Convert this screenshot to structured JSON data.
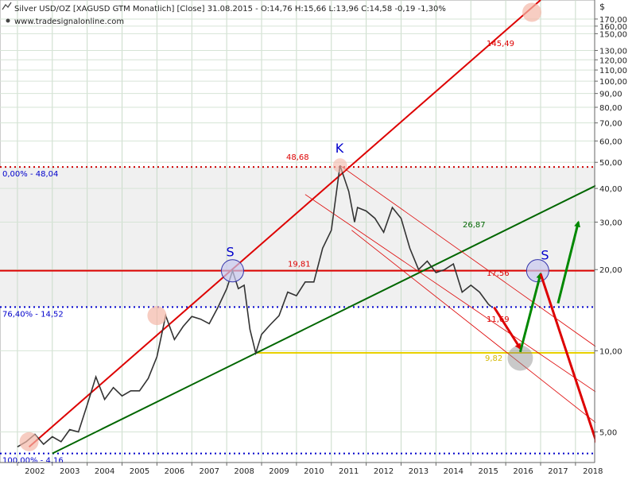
{
  "header": {
    "title": "Silver USD/OZ [XAGUSD GTM  Monatlich] [Close] 31.08.2015 - O:14,76 H:15,66 L:13,96 C:14,58 -0,19 -1,30%",
    "url": "www.tradesignalonline.com"
  },
  "chart_data": {
    "type": "line",
    "y_scale": "log",
    "y_axis_label": "$",
    "y_ticks": [
      "5,00",
      "10,00",
      "20,00",
      "30,00",
      "40,00",
      "50,00",
      "60,00",
      "70,00",
      "80,00",
      "90,00",
      "100,00",
      "110,00",
      "120,00",
      "130,00",
      "150,00",
      "160,00",
      "170,00"
    ],
    "x_ticks": [
      "2002",
      "2003",
      "2004",
      "2005",
      "2006",
      "2007",
      "2008",
      "2009",
      "2010",
      "2011",
      "2012",
      "2013",
      "2014",
      "2015",
      "2016",
      "2017",
      "2018"
    ],
    "grid": true,
    "series": [
      {
        "values": [
          [
            "2002-01",
            4.4
          ],
          [
            "2002-04",
            4.6
          ],
          [
            "2002-07",
            4.9
          ],
          [
            "2002-10",
            4.5
          ],
          [
            "2003-01",
            4.8
          ],
          [
            "2003-04",
            4.6
          ],
          [
            "2003-07",
            5.1
          ],
          [
            "2003-10",
            5.0
          ],
          [
            "2004-01",
            6.3
          ],
          [
            "2004-04",
            8.0
          ],
          [
            "2004-07",
            6.6
          ],
          [
            "2004-10",
            7.3
          ],
          [
            "2005-01",
            6.8
          ],
          [
            "2005-04",
            7.1
          ],
          [
            "2005-07",
            7.1
          ],
          [
            "2005-10",
            7.9
          ],
          [
            "2006-01",
            9.5
          ],
          [
            "2006-04",
            13.5
          ],
          [
            "2006-07",
            11.0
          ],
          [
            "2006-10",
            12.3
          ],
          [
            "2007-01",
            13.4
          ],
          [
            "2007-04",
            13.1
          ],
          [
            "2007-07",
            12.6
          ],
          [
            "2007-10",
            14.5
          ],
          [
            "2008-01",
            17.0
          ],
          [
            "2008-03",
            19.8
          ],
          [
            "2008-05",
            17.0
          ],
          [
            "2008-07",
            17.5
          ],
          [
            "2008-09",
            12.0
          ],
          [
            "2008-11",
            9.8
          ],
          [
            "2009-01",
            11.5
          ],
          [
            "2009-04",
            12.5
          ],
          [
            "2009-07",
            13.5
          ],
          [
            "2009-10",
            16.5
          ],
          [
            "2010-01",
            16.0
          ],
          [
            "2010-04",
            18.0
          ],
          [
            "2010-07",
            18.0
          ],
          [
            "2010-10",
            24.0
          ],
          [
            "2011-01",
            28.0
          ],
          [
            "2011-04",
            48.68
          ],
          [
            "2011-07",
            39.0
          ],
          [
            "2011-09",
            30.0
          ],
          [
            "2011-10",
            34.0
          ],
          [
            "2012-01",
            33.0
          ],
          [
            "2012-04",
            31.0
          ],
          [
            "2012-07",
            27.5
          ],
          [
            "2012-10",
            34.0
          ],
          [
            "2013-01",
            31.0
          ],
          [
            "2013-04",
            24.0
          ],
          [
            "2013-07",
            20.0
          ],
          [
            "2013-10",
            21.5
          ],
          [
            "2014-01",
            19.5
          ],
          [
            "2014-04",
            20.0
          ],
          [
            "2014-07",
            21.0
          ],
          [
            "2014-10",
            16.5
          ],
          [
            "2015-01",
            17.5
          ],
          [
            "2015-04",
            16.5
          ],
          [
            "2015-07",
            14.9
          ],
          [
            "2015-08",
            14.58
          ]
        ]
      }
    ],
    "horizontal_lines": [
      {
        "label": "0,00% - 48,04",
        "value": 48.04,
        "color": "#cc0000",
        "style": "dotted"
      },
      {
        "label": "19,81",
        "value": 19.81,
        "color": "#dd0000",
        "style": "solid"
      },
      {
        "label": "76,40% - 14,52",
        "value": 14.52,
        "color": "#0000cc",
        "style": "dotted"
      },
      {
        "label": "9,82",
        "value": 9.82,
        "color": "#e8d000",
        "style": "solid"
      },
      {
        "label": "100,00% - 4,16",
        "value": 4.16,
        "color": "#0000cc",
        "style": "dotted"
      }
    ],
    "trend_lines": [
      {
        "label": "145,49",
        "color": "#dd0000",
        "from": [
          "2002-05",
          4.4
        ],
        "to": [
          "2017-01",
          200
        ]
      },
      {
        "label": "26,87",
        "color": "#006600",
        "from": [
          "2003-01",
          4.16
        ],
        "to": [
          "2018-10",
          42
        ]
      }
    ],
    "channel_labels": [
      {
        "label": "17,56",
        "color": "#dd0000"
      },
      {
        "label": "11,69",
        "color": "#dd0000"
      },
      {
        "label": "48,68",
        "color": "#dd0000"
      }
    ],
    "annotations": [
      {
        "text": "K",
        "date": "2011-04",
        "value": 48.68
      },
      {
        "text": "S",
        "date": "2008-03",
        "value": 19.8
      },
      {
        "text": "S",
        "date": "2016-12",
        "value": 19.81
      }
    ]
  },
  "colors": {
    "price": "#333333",
    "support_line": "#dd0000",
    "uptrend_green": "#006600",
    "fib_blue": "#0000cc",
    "yellow": "#e8d000",
    "arrow_green": "#008800",
    "arrow_red": "#dd0000"
  }
}
